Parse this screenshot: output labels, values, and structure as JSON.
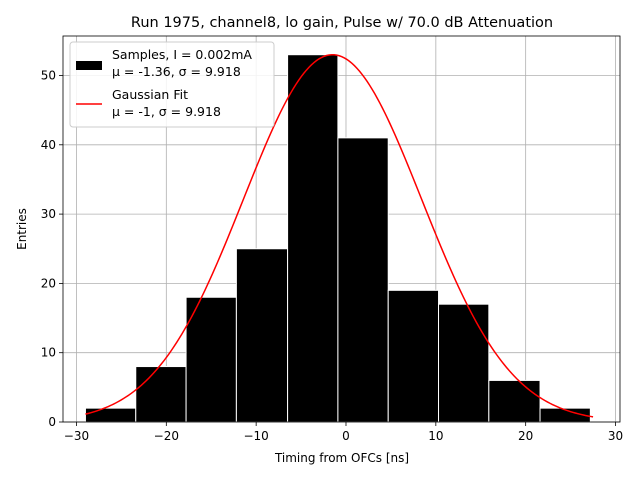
{
  "chart_data": {
    "type": "bar",
    "title": "Run 1975, channel8, lo gain, Pulse w/ 70.0 dB Attenuation",
    "xlabel": "Timing from OFCs [ns]",
    "ylabel": "Entries",
    "xlim": [
      -31.5,
      30.5
    ],
    "ylim": [
      0,
      55.7
    ],
    "xticks": [
      -30,
      -20,
      -10,
      0,
      10,
      20,
      30
    ],
    "yticks": [
      0,
      10,
      20,
      30,
      40,
      50
    ],
    "grid": true,
    "legend_position": "top-left",
    "histogram": {
      "name_lines": [
        "Samples, I = 0.002mA",
        "μ = -1.36, σ = 9.918"
      ],
      "color": "#000000",
      "bin_edges": [
        -29.0,
        -23.4,
        -17.8,
        -12.2,
        -6.5,
        -0.9,
        4.7,
        10.3,
        15.9,
        21.6,
        27.2
      ],
      "counts": [
        2,
        8,
        18,
        25,
        53,
        41,
        19,
        17,
        6,
        2
      ]
    },
    "fit": {
      "name_lines": [
        "Gaussian Fit",
        "μ = -1, σ = 9.918"
      ],
      "color": "#ff0000",
      "mu": -1.5,
      "sigma": 9.918,
      "amplitude": 53,
      "x_range": [
        -29.0,
        27.5
      ]
    }
  }
}
